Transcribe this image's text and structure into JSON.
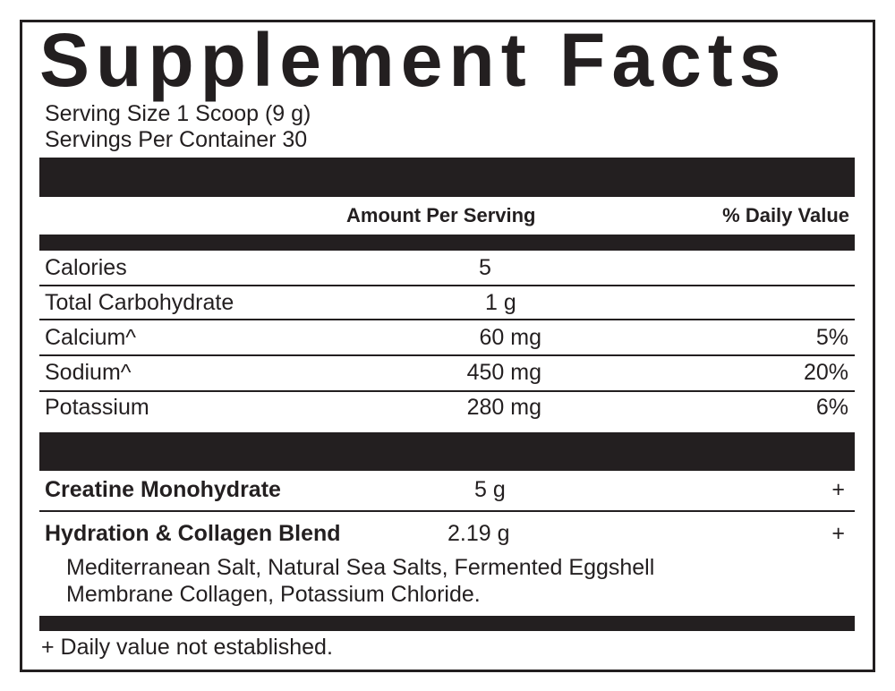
{
  "title": "Supplement Facts",
  "serving_size": "Serving Size 1 Scoop (9 g)",
  "servings_per_container": "Servings Per Container 30",
  "header": {
    "amount": "Amount Per Serving",
    "daily_value": "% Daily Value"
  },
  "nutrients": [
    {
      "name": "Calories",
      "amount": "5",
      "dv": ""
    },
    {
      "name": "Total Carbohydrate",
      "amount": "1 g",
      "dv": ""
    },
    {
      "name": "Calcium^",
      "amount": "60 mg",
      "dv": "5%"
    },
    {
      "name": "Sodium^",
      "amount": "450 mg",
      "dv": "20%"
    },
    {
      "name": "Potassium",
      "amount": "280 mg",
      "dv": "6%"
    }
  ],
  "ingredients": [
    {
      "name": "Creatine Monohydrate",
      "amount": "5 g",
      "dv": "+"
    },
    {
      "name": "Hydration & Collagen Blend",
      "amount": "2.19 g",
      "dv": "+"
    }
  ],
  "blend_line1": "Mediterranean Salt, Natural Sea Salts, Fermented Eggshell",
  "blend_line2": "Membrane Collagen, Potassium Chloride.",
  "footnote": "+ Daily value not established."
}
